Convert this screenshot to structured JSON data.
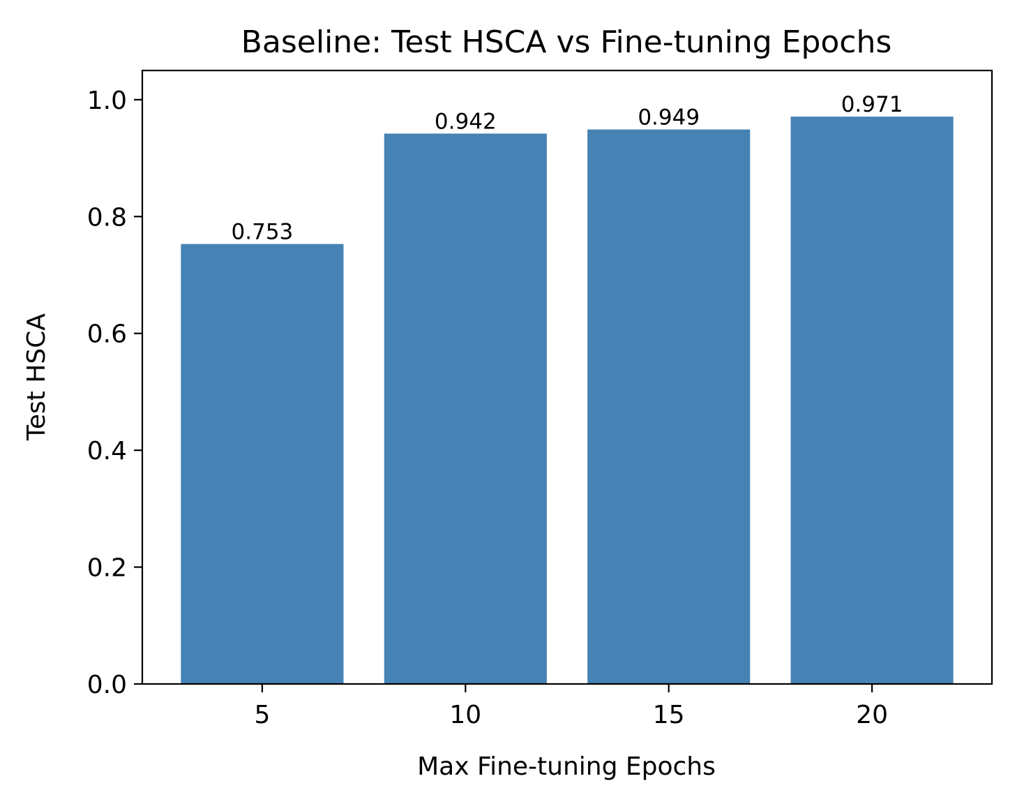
{
  "chart_data": {
    "type": "bar",
    "title": "Baseline: Test HSCA vs Fine-tuning Epochs",
    "xlabel": "Max Fine-tuning Epochs",
    "ylabel": "Test HSCA",
    "categories": [
      "5",
      "10",
      "15",
      "20"
    ],
    "values": [
      0.753,
      0.942,
      0.949,
      0.971
    ],
    "value_labels": [
      "0.753",
      "0.942",
      "0.949",
      "0.971"
    ],
    "yticks": [
      "0.0",
      "0.2",
      "0.4",
      "0.6",
      "0.8",
      "1.0"
    ],
    "ytick_values": [
      0.0,
      0.2,
      0.4,
      0.6,
      0.8,
      1.0
    ],
    "ylim": [
      0,
      1.05
    ],
    "xlim": [
      2.05,
      22.95
    ],
    "grid": false,
    "bar_color": "#4682b4"
  }
}
